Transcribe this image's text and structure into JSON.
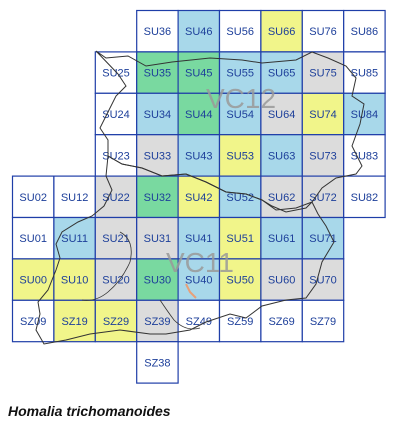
{
  "species": "Homalia trichomanoides",
  "vice_counties": [
    {
      "id": "vc12",
      "label": "VC12"
    },
    {
      "id": "vc11",
      "label": "VC11"
    }
  ],
  "colors": {
    "grid_line": "#1f3ea8",
    "grey": "#dcdcdc",
    "blue": "#a8d8ea",
    "green": "#79d9a0",
    "yellow": "#f1f58a",
    "none": "#ffffff",
    "boundary": "#333333"
  },
  "grid": {
    "columns": [
      "SU0",
      "SU1",
      "SU2",
      "SU3",
      "SU4",
      "SU5",
      "SU6",
      "SU7",
      "SU8"
    ],
    "cells": [
      {
        "label": "SU36",
        "status": "none"
      },
      {
        "label": "SU46",
        "status": "blue"
      },
      {
        "label": "SU56",
        "status": "none"
      },
      {
        "label": "SU66",
        "status": "yellow"
      },
      {
        "label": "SU76",
        "status": "none"
      },
      {
        "label": "SU86",
        "status": "none"
      },
      {
        "label": "SU25",
        "status": "none"
      },
      {
        "label": "SU35",
        "status": "green"
      },
      {
        "label": "SU45",
        "status": "green"
      },
      {
        "label": "SU55",
        "status": "blue"
      },
      {
        "label": "SU65",
        "status": "blue"
      },
      {
        "label": "SU75",
        "status": "grey"
      },
      {
        "label": "SU85",
        "status": "none"
      },
      {
        "label": "SU24",
        "status": "none"
      },
      {
        "label": "SU34",
        "status": "blue"
      },
      {
        "label": "SU44",
        "status": "green"
      },
      {
        "label": "SU54",
        "status": "blue"
      },
      {
        "label": "SU64",
        "status": "grey"
      },
      {
        "label": "SU74",
        "status": "yellow"
      },
      {
        "label": "SU84",
        "status": "blue"
      },
      {
        "label": "SU23",
        "status": "none"
      },
      {
        "label": "SU33",
        "status": "grey"
      },
      {
        "label": "SU43",
        "status": "blue"
      },
      {
        "label": "SU53",
        "status": "yellow"
      },
      {
        "label": "SU63",
        "status": "blue"
      },
      {
        "label": "SU73",
        "status": "grey"
      },
      {
        "label": "SU83",
        "status": "none"
      },
      {
        "label": "SU02",
        "status": "none"
      },
      {
        "label": "SU12",
        "status": "none"
      },
      {
        "label": "SU22",
        "status": "grey"
      },
      {
        "label": "SU32",
        "status": "green"
      },
      {
        "label": "SU42",
        "status": "yellow"
      },
      {
        "label": "SU52",
        "status": "blue"
      },
      {
        "label": "SU62",
        "status": "grey"
      },
      {
        "label": "SU72",
        "status": "grey"
      },
      {
        "label": "SU82",
        "status": "none"
      },
      {
        "label": "SU01",
        "status": "none"
      },
      {
        "label": "SU11",
        "status": "blue"
      },
      {
        "label": "SU21",
        "status": "grey"
      },
      {
        "label": "SU31",
        "status": "grey"
      },
      {
        "label": "SU41",
        "status": "blue"
      },
      {
        "label": "SU51",
        "status": "yellow"
      },
      {
        "label": "SU61",
        "status": "blue"
      },
      {
        "label": "SU71",
        "status": "blue"
      },
      {
        "label": "SU00",
        "status": "yellow"
      },
      {
        "label": "SU10",
        "status": "yellow"
      },
      {
        "label": "SU20",
        "status": "grey"
      },
      {
        "label": "SU30",
        "status": "green"
      },
      {
        "label": "SU40",
        "status": "blue"
      },
      {
        "label": "SU50",
        "status": "yellow"
      },
      {
        "label": "SU60",
        "status": "grey"
      },
      {
        "label": "SU70",
        "status": "grey"
      },
      {
        "label": "SZ09",
        "status": "none"
      },
      {
        "label": "SZ19",
        "status": "yellow"
      },
      {
        "label": "SZ29",
        "status": "yellow"
      },
      {
        "label": "SZ39",
        "status": "grey"
      },
      {
        "label": "SZ49",
        "status": "none"
      },
      {
        "label": "SZ59",
        "status": "none"
      },
      {
        "label": "SZ69",
        "status": "none"
      },
      {
        "label": "SZ79",
        "status": "none"
      },
      {
        "label": "SZ38",
        "status": "none"
      }
    ]
  }
}
